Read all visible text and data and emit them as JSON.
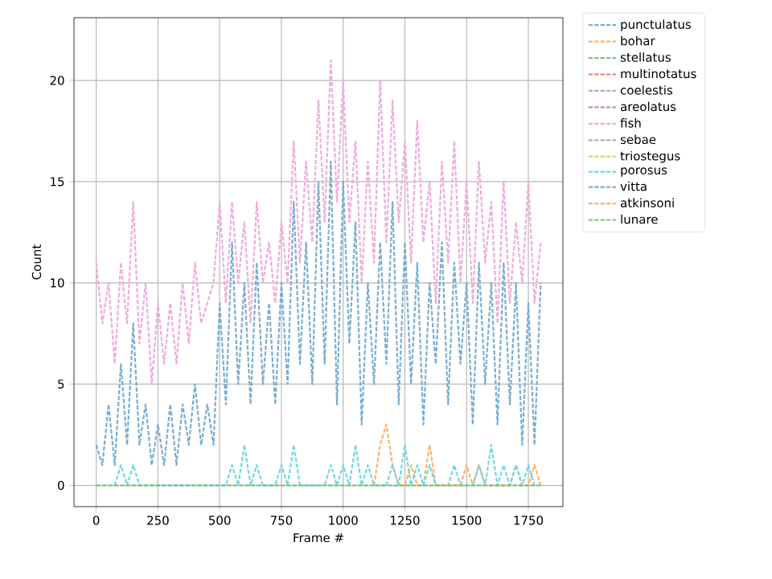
{
  "chart_data": {
    "type": "line",
    "xlabel": "Frame #",
    "ylabel": "Count",
    "x": [
      0,
      25,
      50,
      75,
      100,
      125,
      150,
      175,
      200,
      225,
      250,
      275,
      300,
      325,
      350,
      375,
      400,
      425,
      450,
      475,
      500,
      525,
      550,
      575,
      600,
      625,
      650,
      675,
      700,
      725,
      750,
      775,
      800,
      825,
      850,
      875,
      900,
      925,
      950,
      975,
      1000,
      1025,
      1050,
      1075,
      1100,
      1125,
      1150,
      1175,
      1200,
      1225,
      1250,
      1275,
      1300,
      1325,
      1350,
      1375,
      1400,
      1425,
      1450,
      1475,
      1500,
      1525,
      1550,
      1575,
      1600,
      1625,
      1650,
      1675,
      1700,
      1725,
      1750,
      1775,
      1800
    ],
    "series": [
      {
        "name": "punctulatus",
        "color": "#79add2",
        "values": [
          null,
          null,
          null,
          null,
          null,
          null,
          null,
          null,
          null,
          null,
          null,
          null,
          null,
          null,
          null,
          null,
          null,
          null,
          null,
          null,
          null,
          null,
          null,
          null,
          null,
          null,
          null,
          null,
          null,
          null,
          null,
          null,
          null,
          null,
          null,
          null,
          null,
          null,
          null,
          null,
          null,
          null,
          null,
          null,
          null,
          null,
          null,
          null,
          null,
          null,
          null,
          null,
          null,
          null,
          null,
          null,
          null,
          null,
          null,
          null,
          null,
          null,
          null,
          null,
          null,
          null,
          null,
          null,
          null,
          null,
          null,
          null,
          null
        ]
      },
      {
        "name": "bohar",
        "color": "#ffb26c",
        "values": [
          null,
          null,
          null,
          null,
          null,
          null,
          null,
          null,
          null,
          null,
          null,
          null,
          null,
          null,
          null,
          null,
          null,
          null,
          null,
          null,
          null,
          null,
          null,
          null,
          null,
          null,
          null,
          null,
          null,
          null,
          null,
          null,
          null,
          null,
          null,
          null,
          null,
          null,
          null,
          null,
          null,
          null,
          null,
          null,
          null,
          0,
          2,
          3,
          1,
          0,
          0,
          1,
          0,
          0,
          2,
          0,
          null,
          null,
          null,
          0,
          1,
          0,
          1,
          0,
          null,
          null,
          null,
          0,
          1,
          0,
          0,
          1,
          0
        ]
      },
      {
        "name": "stellatus",
        "color": "#78c678",
        "values": [
          null,
          null,
          null,
          null,
          null,
          null,
          null,
          null,
          null,
          null,
          null,
          null,
          null,
          null,
          null,
          null,
          null,
          null,
          null,
          null,
          null,
          null,
          null,
          null,
          null,
          null,
          null,
          null,
          null,
          null,
          null,
          null,
          null,
          null,
          null,
          null,
          null,
          null,
          null,
          null,
          null,
          null,
          null,
          null,
          null,
          null,
          null,
          null,
          null,
          null,
          null,
          null,
          null,
          null,
          null,
          null,
          null,
          null,
          null,
          null,
          null,
          null,
          null,
          null,
          null,
          null,
          null,
          null,
          null,
          null,
          null,
          null,
          null
        ]
      },
      {
        "name": "multinotatus",
        "color": "#e67d76",
        "values": [
          null,
          null,
          null,
          null,
          null,
          null,
          null,
          null,
          null,
          null,
          null,
          null,
          null,
          null,
          null,
          null,
          null,
          null,
          null,
          null,
          null,
          null,
          null,
          null,
          null,
          null,
          null,
          null,
          null,
          null,
          null,
          null,
          null,
          null,
          null,
          null,
          null,
          null,
          null,
          null,
          null,
          null,
          null,
          null,
          null,
          null,
          null,
          null,
          null,
          null,
          null,
          null,
          null,
          null,
          null,
          null,
          null,
          null,
          null,
          null,
          null,
          null,
          null,
          null,
          null,
          null,
          null,
          null,
          null,
          null,
          null,
          null,
          null
        ]
      },
      {
        "name": "coelestis",
        "color": "#bfa4d7",
        "values": [
          null,
          null,
          null,
          null,
          null,
          null,
          null,
          null,
          null,
          null,
          null,
          null,
          null,
          null,
          null,
          null,
          null,
          null,
          null,
          null,
          null,
          null,
          null,
          null,
          null,
          null,
          null,
          null,
          null,
          null,
          null,
          null,
          null,
          null,
          null,
          null,
          null,
          null,
          null,
          null,
          null,
          null,
          null,
          null,
          null,
          null,
          null,
          null,
          null,
          null,
          null,
          null,
          null,
          null,
          null,
          null,
          null,
          null,
          null,
          null,
          null,
          null,
          null,
          null,
          null,
          null,
          null,
          null,
          null,
          null,
          null,
          null,
          null
        ]
      },
      {
        "name": "areolatus",
        "color": "#ba9a93",
        "values": [
          null,
          null,
          null,
          null,
          null,
          null,
          null,
          null,
          null,
          null,
          null,
          null,
          null,
          null,
          null,
          null,
          null,
          null,
          null,
          null,
          null,
          null,
          null,
          null,
          null,
          null,
          null,
          null,
          null,
          null,
          null,
          null,
          null,
          null,
          null,
          null,
          null,
          null,
          null,
          null,
          null,
          null,
          null,
          null,
          null,
          null,
          null,
          null,
          null,
          null,
          null,
          null,
          null,
          null,
          null,
          null,
          null,
          null,
          null,
          null,
          null,
          null,
          null,
          null,
          null,
          null,
          null,
          null,
          null,
          null,
          null,
          null,
          null
        ]
      },
      {
        "name": "fish",
        "color": "#eeadda",
        "values": [
          11,
          8,
          10,
          6,
          11,
          8,
          14,
          7,
          10,
          5,
          9,
          6,
          9,
          6,
          10,
          7,
          11,
          8,
          9,
          10,
          14,
          9,
          14,
          10,
          13,
          8,
          14,
          10,
          12,
          9,
          13,
          10,
          17,
          11,
          16,
          12,
          19,
          13,
          21,
          14,
          20,
          13,
          17,
          10,
          16,
          11,
          20,
          12,
          19,
          13,
          17,
          11,
          18,
          12,
          15,
          9,
          16,
          11,
          17,
          10,
          15,
          9,
          16,
          11,
          14,
          8,
          15,
          9,
          13,
          10,
          15,
          9,
          12
        ]
      },
      {
        "name": "sebae",
        "color": "#b2b2b2",
        "values": [
          null,
          null,
          null,
          null,
          null,
          null,
          null,
          null,
          null,
          null,
          null,
          null,
          null,
          null,
          null,
          null,
          null,
          null,
          null,
          null,
          null,
          null,
          null,
          null,
          null,
          null,
          null,
          null,
          null,
          null,
          null,
          null,
          null,
          null,
          null,
          null,
          null,
          null,
          null,
          null,
          null,
          null,
          null,
          null,
          null,
          null,
          null,
          null,
          null,
          null,
          null,
          null,
          null,
          null,
          null,
          null,
          null,
          null,
          null,
          null,
          null,
          null,
          null,
          null,
          null,
          null,
          null,
          null,
          null,
          null,
          null,
          null,
          null
        ]
      },
      {
        "name": "triostegus",
        "color": "#d7d773",
        "values": [
          null,
          null,
          null,
          null,
          null,
          null,
          null,
          null,
          null,
          null,
          null,
          null,
          null,
          null,
          null,
          null,
          null,
          null,
          null,
          null,
          null,
          null,
          null,
          null,
          null,
          null,
          null,
          null,
          null,
          null,
          null,
          null,
          null,
          null,
          null,
          null,
          null,
          null,
          null,
          null,
          null,
          null,
          null,
          null,
          null,
          null,
          null,
          null,
          null,
          null,
          null,
          null,
          null,
          null,
          null,
          null,
          null,
          null,
          null,
          null,
          null,
          null,
          null,
          null,
          null,
          null,
          null,
          null,
          null,
          null,
          null,
          null,
          null
        ]
      },
      {
        "name": "porosus",
        "color": "#74d8e2",
        "values": [
          null,
          null,
          null,
          0,
          1,
          0,
          1,
          0,
          0,
          0,
          0,
          0,
          0,
          0,
          0,
          0,
          0,
          0,
          0,
          0,
          0,
          0,
          1,
          0,
          2,
          0,
          1,
          0,
          0,
          0,
          1,
          0,
          2,
          0,
          0,
          0,
          0,
          0,
          1,
          0,
          1,
          0,
          2,
          0,
          1,
          0,
          0,
          0,
          1,
          0,
          2,
          0,
          1,
          0,
          1,
          0,
          0,
          0,
          1,
          0,
          0,
          0,
          1,
          0,
          2,
          0,
          1,
          0,
          1,
          0,
          1,
          0,
          null
        ]
      },
      {
        "name": "vitta",
        "color": "#79add2",
        "values": [
          2,
          1,
          4,
          1,
          6,
          2,
          8,
          2,
          4,
          1,
          3,
          1,
          4,
          1,
          4,
          2,
          5,
          2,
          4,
          2,
          9,
          4,
          12,
          5,
          10,
          4,
          11,
          5,
          9,
          4,
          10,
          5,
          14,
          6,
          12,
          5,
          15,
          6,
          16,
          4,
          15,
          7,
          13,
          3,
          10,
          5,
          12,
          6,
          14,
          4,
          12,
          5,
          11,
          3,
          10,
          6,
          12,
          4,
          11,
          6,
          10,
          3,
          11,
          5,
          10,
          3,
          11,
          4,
          10,
          2,
          9,
          2,
          10
        ]
      },
      {
        "name": "atkinsoni",
        "color": "#ffb26c",
        "values": [
          null,
          null,
          null,
          null,
          null,
          null,
          null,
          null,
          null,
          null,
          null,
          null,
          null,
          null,
          null,
          null,
          null,
          null,
          null,
          null,
          null,
          null,
          null,
          null,
          null,
          null,
          null,
          null,
          null,
          null,
          null,
          null,
          null,
          null,
          null,
          null,
          null,
          null,
          null,
          null,
          null,
          null,
          null,
          null,
          null,
          null,
          null,
          null,
          null,
          null,
          null,
          null,
          null,
          null,
          null,
          null,
          null,
          null,
          null,
          null,
          null,
          null,
          null,
          null,
          null,
          null,
          null,
          null,
          null,
          null,
          null,
          null,
          null
        ]
      },
      {
        "name": "lunare",
        "color": "#78c678",
        "values": [
          0,
          0,
          0,
          0,
          0,
          0,
          0,
          0,
          0,
          0,
          0,
          0,
          0,
          0,
          0,
          0,
          0,
          0,
          0,
          0,
          0,
          0,
          0,
          0,
          0,
          0,
          0,
          0,
          0,
          0,
          0,
          0,
          0,
          0,
          0,
          0,
          0,
          0,
          0,
          0,
          0,
          0,
          0,
          0,
          0,
          0,
          0,
          0,
          0,
          0,
          0,
          0,
          0,
          0,
          0,
          0,
          0,
          0,
          0,
          0,
          0,
          0,
          0,
          0,
          0,
          0,
          0,
          0,
          0,
          0,
          0,
          0,
          0
        ]
      }
    ],
    "xlim": [
      -90,
      1890
    ],
    "ylim": [
      -1.05,
      23.1
    ],
    "xticks": [
      0,
      250,
      500,
      750,
      1000,
      1250,
      1500,
      1750
    ],
    "yticks": [
      0,
      5,
      10,
      15,
      20
    ],
    "grid": true,
    "legend": "right",
    "line_style": "dashed",
    "marker": "none"
  }
}
